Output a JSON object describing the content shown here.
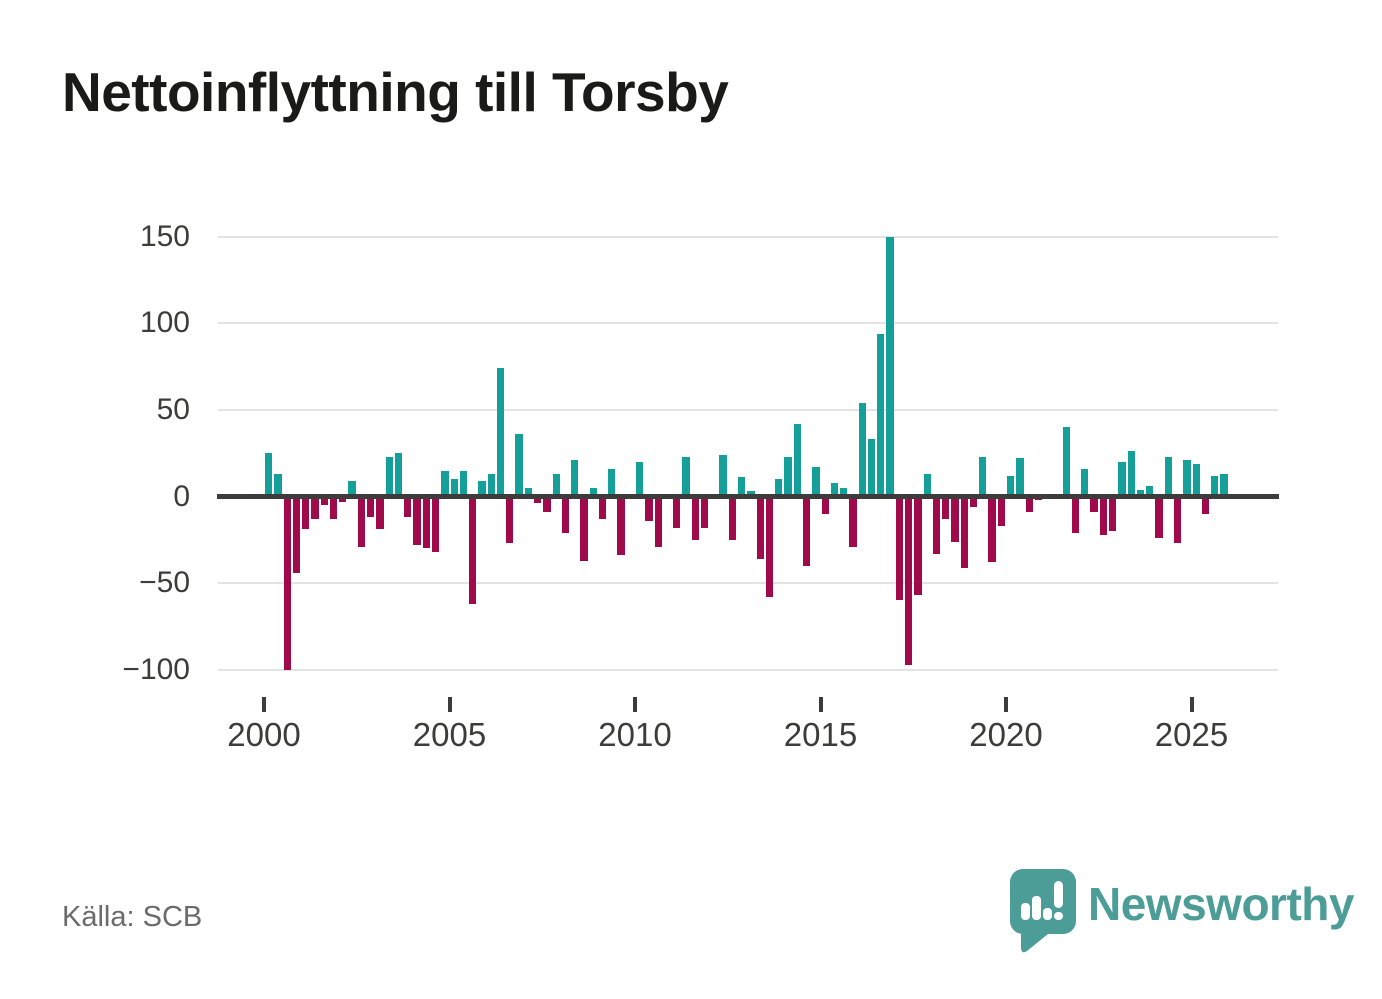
{
  "page": {
    "title": "Nettoinflyttning till Torsby",
    "source": "Källa: SCB",
    "brand": "Newsworthy"
  },
  "colors": {
    "positive": "#14a098",
    "negative": "#a00a4b",
    "grid": "#e3e3e3",
    "axis": "#3c3c3b",
    "text": "#3c3c3b",
    "source_text": "#6b6b6b",
    "logo": "#4c9d98",
    "background": "#ffffff"
  },
  "chart_data": {
    "type": "bar",
    "title": "Nettoinflyttning till Torsby",
    "xlabel": "",
    "ylabel": "",
    "start": "2000-Q1",
    "interval": "quarter",
    "ylim": [
      -100,
      150
    ],
    "grid": true,
    "yticks": [
      {
        "value": 150,
        "label": "150"
      },
      {
        "value": 100,
        "label": "100"
      },
      {
        "value": 50,
        "label": "50"
      },
      {
        "value": 0,
        "label": "0"
      },
      {
        "value": -50,
        "label": "−50"
      },
      {
        "value": -100,
        "label": "−100"
      }
    ],
    "xticks": [
      {
        "year": 2000,
        "label": "2000"
      },
      {
        "year": 2005,
        "label": "2005"
      },
      {
        "year": 2010,
        "label": "2010"
      },
      {
        "year": 2015,
        "label": "2015"
      },
      {
        "year": 2020,
        "label": "2020"
      },
      {
        "year": 2025,
        "label": "2025"
      }
    ],
    "values": [
      25,
      13,
      -100,
      -44,
      -19,
      -13,
      -5,
      -13,
      -3,
      9,
      -29,
      -12,
      -19,
      23,
      25,
      -12,
      -28,
      -30,
      -32,
      15,
      10,
      15,
      -62,
      9,
      13,
      74,
      -27,
      36,
      5,
      -4,
      -9,
      13,
      -21,
      21,
      -37,
      5,
      -13,
      16,
      -34,
      0,
      20,
      -14,
      -29,
      0,
      -18,
      23,
      -25,
      -18,
      0,
      24,
      -25,
      11,
      3,
      -36,
      -58,
      10,
      23,
      42,
      -40,
      17,
      -10,
      8,
      5,
      -29,
      54,
      33,
      94,
      150,
      -60,
      -97,
      -57,
      13,
      -33,
      -13,
      -26,
      -41,
      -6,
      23,
      -38,
      -17,
      12,
      22,
      -9,
      -2,
      -1,
      0,
      40,
      -21,
      16,
      -9,
      -22,
      -20,
      20,
      26,
      4,
      6,
      -24,
      23,
      -27,
      21,
      19,
      -10,
      12,
      13
    ]
  }
}
